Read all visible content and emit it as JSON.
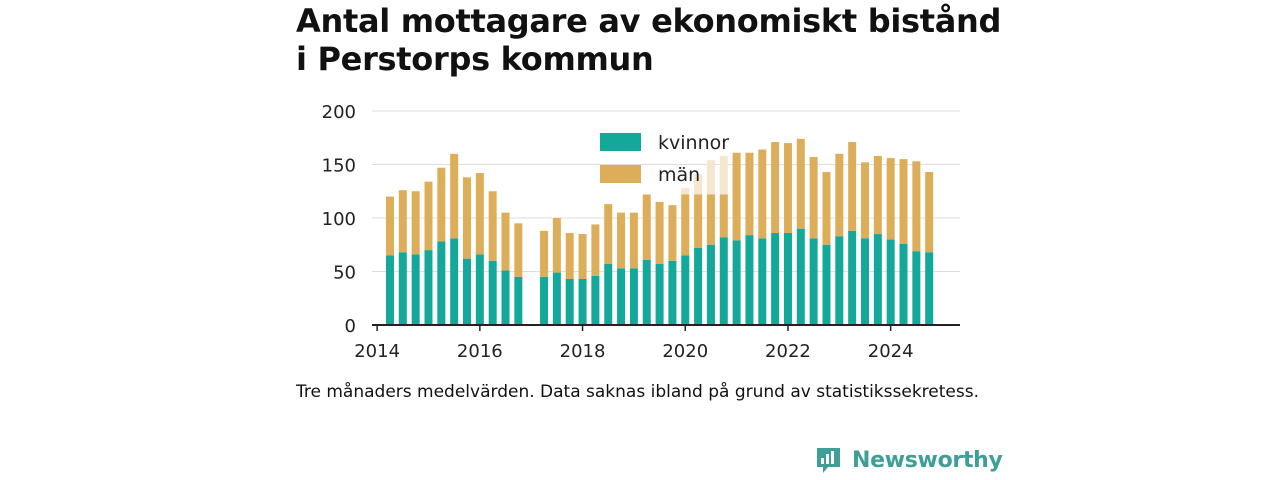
{
  "title_line1": "Antal mottagare av ekonomiskt bistånd",
  "title_line2": "i Perstorps kommun",
  "footnote": "Tre månaders medelvärden. Data saknas ibland på grund av statistikssekretess.",
  "brand": {
    "name": "Newsworthy",
    "icon": "newsworthy-logo-icon",
    "color": "#3e9e98"
  },
  "chart_data": {
    "type": "bar",
    "stacked": true,
    "ylim": [
      0,
      200
    ],
    "yticks": [
      0,
      50,
      100,
      150,
      200
    ],
    "xticks": [
      2014,
      2016,
      2018,
      2020,
      2022,
      2024
    ],
    "xlim": [
      2013.9,
      2025.35
    ],
    "grid": true,
    "legend_position": "top-center",
    "x": [
      2014.25,
      2014.5,
      2014.75,
      2015,
      2015.25,
      2015.5,
      2015.75,
      2016,
      2016.25,
      2016.5,
      2016.75,
      2017.25,
      2017.5,
      2017.75,
      2018,
      2018.25,
      2018.5,
      2018.75,
      2019,
      2019.25,
      2019.5,
      2019.75,
      2020,
      2020.25,
      2020.5,
      2020.75,
      2021,
      2021.25,
      2021.5,
      2021.75,
      2022,
      2022.25,
      2022.5,
      2022.75,
      2023,
      2023.25,
      2023.5,
      2023.75,
      2024,
      2024.25,
      2024.5,
      2024.75
    ],
    "series": [
      {
        "name": "kvinnor",
        "color": "#14a89a",
        "values": [
          65,
          68,
          66,
          70,
          78,
          81,
          62,
          66,
          60,
          51,
          45,
          45,
          49,
          43,
          43,
          46,
          57,
          53,
          53,
          61,
          57,
          60,
          65,
          72,
          75,
          82,
          79,
          84,
          81,
          86,
          86,
          90,
          81,
          75,
          83,
          88,
          81,
          85,
          80,
          76,
          69,
          68
        ]
      },
      {
        "name": "män",
        "color": "#dcae5a",
        "values": [
          55,
          58,
          59,
          64,
          69,
          79,
          76,
          76,
          65,
          54,
          50,
          43,
          51,
          43,
          42,
          48,
          56,
          52,
          52,
          61,
          58,
          52,
          57,
          50,
          47,
          40,
          82,
          77,
          83,
          85,
          84,
          84,
          76,
          68,
          77,
          83,
          71,
          73,
          76,
          79,
          84,
          75
        ]
      }
    ],
    "faded_bars": [
      {
        "x": 2020,
        "total": 128
      },
      {
        "x": 2020.25,
        "total": 141
      },
      {
        "x": 2020.5,
        "total": 154
      },
      {
        "x": 2020.75,
        "total": 158
      }
    ]
  }
}
